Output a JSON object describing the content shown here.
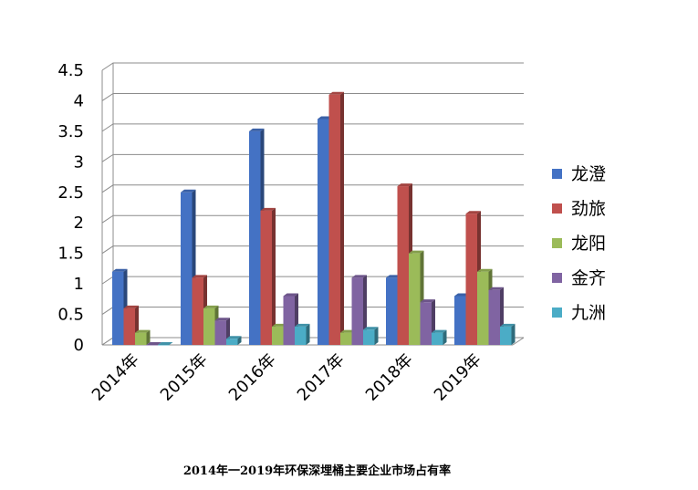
{
  "chart_data": {
    "type": "bar",
    "title": "",
    "xlabel": "",
    "ylabel": "",
    "ylim": [
      0,
      4.5
    ],
    "yticks": [
      "0",
      "0.5",
      "1",
      "1.5",
      "2",
      "2.5",
      "3",
      "3.5",
      "4",
      "4.5"
    ],
    "ytick_values": [
      0,
      0.5,
      1,
      1.5,
      2,
      2.5,
      3,
      3.5,
      4,
      4.5
    ],
    "categories": [
      "2014年",
      "2015年",
      "2016年",
      "2017年",
      "2018年",
      "2019年"
    ],
    "series": [
      {
        "name": "龙澄",
        "color": "#4472C4",
        "values": [
          1.2,
          2.5,
          3.5,
          3.7,
          1.1,
          0.8
        ]
      },
      {
        "name": "劲旅",
        "color": "#C0504D",
        "values": [
          0.6,
          1.1,
          2.2,
          4.1,
          2.6,
          2.15
        ]
      },
      {
        "name": "龙阳",
        "color": "#9BBB59",
        "values": [
          0.2,
          0.6,
          0.3,
          0.2,
          1.5,
          1.2
        ]
      },
      {
        "name": "金齐",
        "color": "#8064A2",
        "values": [
          0.0,
          0.4,
          0.8,
          1.1,
          0.7,
          0.9
        ]
      },
      {
        "name": "九洲",
        "color": "#4BACC6",
        "values": [
          0.0,
          0.1,
          0.3,
          0.25,
          0.2,
          0.3
        ]
      }
    ],
    "grid": true,
    "legend_position": "right"
  },
  "caption": "2014年一2019年环保深埋桶主要企业市场占有率"
}
